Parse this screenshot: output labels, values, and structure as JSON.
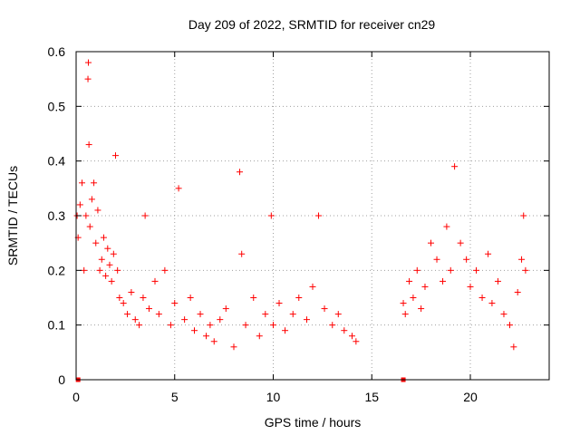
{
  "chart_data": {
    "type": "scatter",
    "title": "Day 209 of 2022, SRMTID for receiver cn29",
    "xlabel": "GPS time / hours",
    "ylabel": "SRMTID / TECUs",
    "xlim": [
      0,
      24
    ],
    "ylim": [
      0,
      0.6
    ],
    "xticks": [
      0,
      5,
      10,
      15,
      20
    ],
    "yticks": [
      0,
      0.1,
      0.2,
      0.3,
      0.4,
      0.5,
      0.6
    ],
    "xtick_labels": [
      "0",
      "5",
      "10",
      "15",
      "20"
    ],
    "ytick_labels": [
      "0",
      "0.1",
      "0.2",
      "0.3",
      "0.4",
      "0.5",
      "0.6"
    ],
    "grid": true,
    "marker": "+",
    "color": "#ff0000",
    "series": [
      {
        "name": "SRMTID",
        "x": [
          0.05,
          0.1,
          0.2,
          0.3,
          0.4,
          0.5,
          0.6,
          0.62,
          0.65,
          0.7,
          0.8,
          0.9,
          1.0,
          1.1,
          1.2,
          1.3,
          1.4,
          1.5,
          1.6,
          1.7,
          1.8,
          1.9,
          2.0,
          2.1,
          2.2,
          2.4,
          2.6,
          2.8,
          3.0,
          3.2,
          3.4,
          3.5,
          3.7,
          4.0,
          4.2,
          4.5,
          4.8,
          5.0,
          5.2,
          5.5,
          5.8,
          6.0,
          6.3,
          6.6,
          6.8,
          7.0,
          7.3,
          7.6,
          8.0,
          8.3,
          8.4,
          8.6,
          9.0,
          9.3,
          9.6,
          9.9,
          10.0,
          10.3,
          10.6,
          11.0,
          11.3,
          11.7,
          12.0,
          12.3,
          12.6,
          13.0,
          13.3,
          13.6,
          14.0,
          14.2,
          16.6,
          16.7,
          16.9,
          17.1,
          17.3,
          17.5,
          17.7,
          18.0,
          18.3,
          18.6,
          18.8,
          19.0,
          19.2,
          19.5,
          19.8,
          20.0,
          20.3,
          20.6,
          20.9,
          21.1,
          21.4,
          21.7,
          22.0,
          22.2,
          22.4,
          22.6,
          22.7,
          22.8
        ],
        "y": [
          0.3,
          0.26,
          0.32,
          0.36,
          0.2,
          0.3,
          0.55,
          0.58,
          0.43,
          0.28,
          0.33,
          0.36,
          0.25,
          0.31,
          0.2,
          0.22,
          0.26,
          0.19,
          0.24,
          0.21,
          0.18,
          0.23,
          0.41,
          0.2,
          0.15,
          0.14,
          0.12,
          0.16,
          0.11,
          0.1,
          0.15,
          0.3,
          0.13,
          0.18,
          0.12,
          0.2,
          0.1,
          0.14,
          0.35,
          0.11,
          0.15,
          0.09,
          0.12,
          0.08,
          0.1,
          0.07,
          0.11,
          0.13,
          0.06,
          0.38,
          0.23,
          0.1,
          0.15,
          0.08,
          0.12,
          0.3,
          0.1,
          0.14,
          0.09,
          0.12,
          0.15,
          0.11,
          0.17,
          0.3,
          0.13,
          0.1,
          0.12,
          0.09,
          0.08,
          0.07,
          0.14,
          0.12,
          0.18,
          0.15,
          0.2,
          0.13,
          0.17,
          0.25,
          0.22,
          0.18,
          0.28,
          0.2,
          0.39,
          0.25,
          0.22,
          0.17,
          0.2,
          0.15,
          0.23,
          0.14,
          0.18,
          0.12,
          0.1,
          0.06,
          0.16,
          0.22,
          0.3,
          0.2
        ]
      }
    ],
    "gap_markers": {
      "x": [
        0.1,
        16.6
      ],
      "y": [
        0,
        0
      ]
    }
  }
}
